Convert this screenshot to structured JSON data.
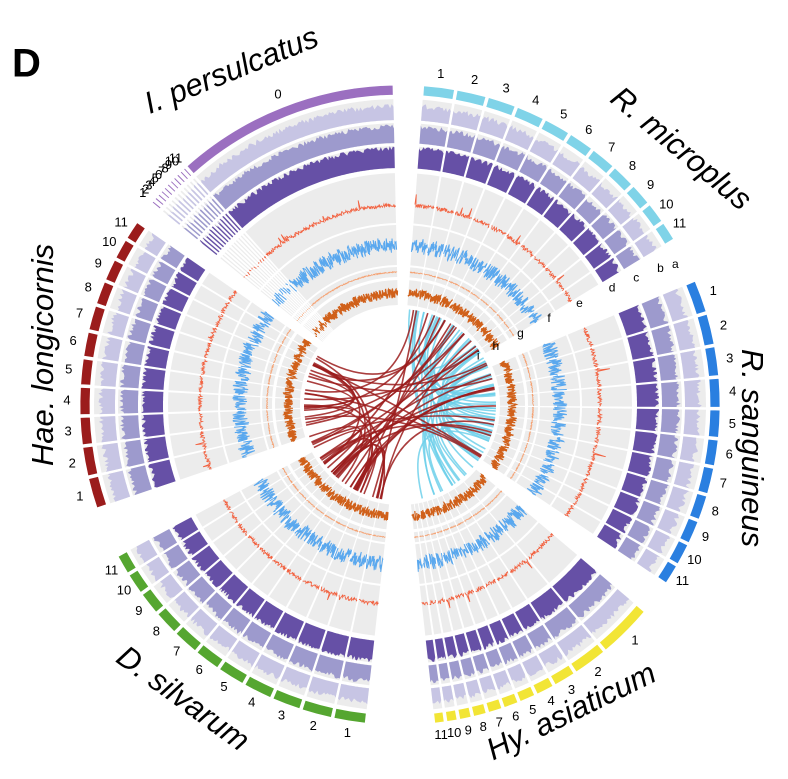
{
  "panel_label": "D",
  "genomes": [
    {
      "name": "I. persulcatus",
      "color": "#9b6fc0",
      "chromosomes": [
        "1",
        "2",
        "3",
        "4",
        "5",
        "6",
        "7",
        "8",
        "9",
        "10",
        "11",
        "0"
      ]
    },
    {
      "name": "R. microplus",
      "color": "#7fd3e8",
      "chromosomes": [
        "1",
        "2",
        "3",
        "4",
        "5",
        "6",
        "7",
        "8",
        "9",
        "10",
        "11"
      ]
    },
    {
      "name": "R. sanguineus",
      "color": "#2a7fe0",
      "chromosomes": [
        "1",
        "2",
        "3",
        "4",
        "5",
        "6",
        "7",
        "8",
        "9",
        "10",
        "11"
      ]
    },
    {
      "name": "Hy. asiaticum",
      "color": "#f2e535",
      "chromosomes": [
        "1",
        "2",
        "3",
        "4",
        "5",
        "6",
        "7",
        "8",
        "9",
        "10",
        "11"
      ]
    },
    {
      "name": "D. silvarum",
      "color": "#55a630",
      "chromosomes": [
        "1",
        "2",
        "3",
        "4",
        "5",
        "6",
        "7",
        "8",
        "9",
        "10",
        "11"
      ]
    },
    {
      "name": "Hae. longicornis",
      "color": "#9b1c1c",
      "chromosomes": [
        "1",
        "2",
        "3",
        "4",
        "5",
        "6",
        "7",
        "8",
        "9",
        "10",
        "11"
      ]
    }
  ],
  "track_labels": [
    "a",
    "b",
    "c",
    "d",
    "e",
    "f",
    "g",
    "h",
    "i"
  ]
}
